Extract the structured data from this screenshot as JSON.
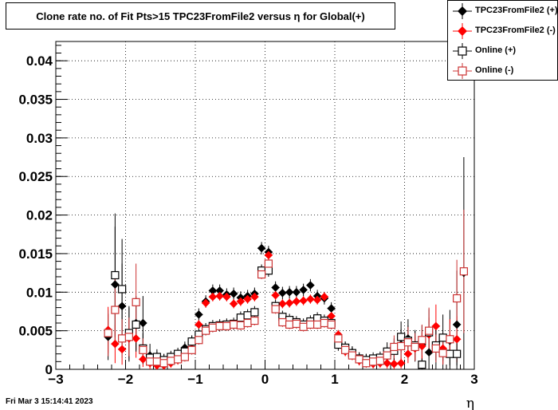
{
  "chart_data": {
    "type": "scatter",
    "title": "Clone rate no. of Fit Pts>15 TPC23FromFile2 versus η for Global(+)",
    "xlabel": "η",
    "ylabel": "",
    "xlim": [
      -3,
      3
    ],
    "ylim": [
      0,
      0.0425
    ],
    "xticks": [
      -3,
      -2,
      -1,
      0,
      1,
      2,
      3
    ],
    "xtick_labels": [
      "−3",
      "−2",
      "−1",
      "0",
      "1",
      "2",
      "3"
    ],
    "yticks": [
      0,
      0.005,
      0.01,
      0.015,
      0.02,
      0.025,
      0.03,
      0.035,
      0.04
    ],
    "ytick_labels": [
      "0",
      "0.005",
      "0.01",
      "0.015",
      "0.02",
      "0.025",
      "0.03",
      "0.035",
      "0.04"
    ],
    "grid": true,
    "legend_position": "top-right",
    "series": [
      {
        "name": "TPC23FromFile2 (+)",
        "color": "#000000",
        "marker": "diamond-filled",
        "x": [
          -2.25,
          -2.15,
          -2.05,
          -1.95,
          -1.85,
          -1.75,
          -1.65,
          -1.55,
          -1.45,
          -1.35,
          -1.25,
          -1.15,
          -1.05,
          -0.95,
          -0.85,
          -0.75,
          -0.65,
          -0.55,
          -0.45,
          -0.35,
          -0.25,
          -0.15,
          -0.05,
          0.05,
          0.15,
          0.25,
          0.35,
          0.45,
          0.55,
          0.65,
          0.75,
          0.85,
          0.95,
          1.05,
          1.15,
          1.25,
          1.35,
          1.45,
          1.55,
          1.65,
          1.75,
          1.85,
          1.95,
          2.05,
          2.15,
          2.25,
          2.35,
          2.45,
          2.55,
          2.65,
          2.75,
          2.85
        ],
        "y": [
          0.0042,
          0.011,
          0.0082,
          0.0045,
          0.006,
          0.006,
          0.0018,
          0.0013,
          0.0012,
          0.0014,
          0.0018,
          0.0028,
          0.0036,
          0.0071,
          0.0088,
          0.0102,
          0.0102,
          0.0097,
          0.0098,
          0.0093,
          0.0095,
          0.0098,
          0.0157,
          0.0152,
          0.0106,
          0.0099,
          0.01,
          0.01,
          0.0103,
          0.0109,
          0.0095,
          0.0092,
          0.0079,
          0.0042,
          0.0028,
          0.0022,
          0.0014,
          0.0012,
          0.0011,
          0.0012,
          0.0017,
          0.0025,
          0.0032,
          0.004,
          0.003,
          0.0032,
          0.0022,
          0.003,
          0.0021,
          0.0037,
          0.0058,
          0.0125
        ],
        "yerr": [
          0.003,
          0.0075,
          0.0055,
          0.0035,
          0.0035,
          0.0035,
          0.0015,
          0.001,
          0.0008,
          0.0008,
          0.0008,
          0.0008,
          0.0008,
          0.0008,
          0.0008,
          0.0008,
          0.0008,
          0.0008,
          0.0008,
          0.0008,
          0.0008,
          0.0008,
          0.0008,
          0.0008,
          0.0008,
          0.0008,
          0.0008,
          0.0008,
          0.0008,
          0.0008,
          0.0008,
          0.0008,
          0.0008,
          0.0008,
          0.0008,
          0.0008,
          0.0008,
          0.0008,
          0.0008,
          0.0008,
          0.0012,
          0.0015,
          0.002,
          0.0025,
          0.002,
          0.0025,
          0.0025,
          0.003,
          0.0025,
          0.004,
          0.007,
          0.015
        ]
      },
      {
        "name": "TPC23FromFile2 (-)",
        "color": "#ff0000",
        "marker": "diamond-filled",
        "x": [
          -2.25,
          -2.15,
          -2.05,
          -1.95,
          -1.85,
          -1.75,
          -1.65,
          -1.55,
          -1.45,
          -1.35,
          -1.25,
          -1.15,
          -1.05,
          -0.95,
          -0.85,
          -0.75,
          -0.65,
          -0.55,
          -0.45,
          -0.35,
          -0.25,
          -0.15,
          -0.05,
          0.05,
          0.15,
          0.25,
          0.35,
          0.45,
          0.55,
          0.65,
          0.75,
          0.85,
          0.95,
          1.05,
          1.15,
          1.25,
          1.35,
          1.45,
          1.55,
          1.65,
          1.75,
          1.85,
          1.95,
          2.05,
          2.15,
          2.25,
          2.35,
          2.45,
          2.55,
          2.65,
          2.75
        ],
        "y": [
          0.0051,
          0.0033,
          0.0026,
          0.004,
          0.004,
          0.0013,
          0.0008,
          0.0005,
          0.0005,
          0.0008,
          0.0012,
          0.0018,
          0.0034,
          0.0058,
          0.0086,
          0.0094,
          0.0095,
          0.0094,
          0.0085,
          0.0088,
          0.0091,
          0.0094,
          0.0128,
          0.0148,
          0.0096,
          0.0085,
          0.0086,
          0.0088,
          0.0089,
          0.0091,
          0.009,
          0.0094,
          0.0069,
          0.0045,
          0.0023,
          0.0018,
          0.0011,
          0.0008,
          0.0007,
          0.0008,
          0.0008,
          0.0007,
          0.0008,
          0.002,
          0.0027,
          0.003,
          0.0045,
          0.0056,
          0.0027,
          0.004,
          0.0039
        ],
        "yerr": [
          0.003,
          0.0025,
          0.002,
          0.0025,
          0.0025,
          0.001,
          0.0008,
          0.0006,
          0.0006,
          0.0006,
          0.0006,
          0.0006,
          0.0006,
          0.0006,
          0.0006,
          0.0006,
          0.0006,
          0.0006,
          0.0006,
          0.0006,
          0.0006,
          0.0006,
          0.0006,
          0.0006,
          0.0006,
          0.0006,
          0.0006,
          0.0006,
          0.0006,
          0.0006,
          0.0006,
          0.0006,
          0.0006,
          0.0006,
          0.0006,
          0.0006,
          0.0006,
          0.0006,
          0.0006,
          0.0006,
          0.0007,
          0.0007,
          0.0007,
          0.0012,
          0.0015,
          0.0018,
          0.0022,
          0.0028,
          0.002,
          0.0025,
          0.003
        ]
      },
      {
        "name": "Online (+)",
        "color": "#000000",
        "marker": "square-open",
        "x": [
          -2.15,
          -2.05,
          -1.95,
          -1.85,
          -1.75,
          -1.65,
          -1.55,
          -1.45,
          -1.35,
          -1.25,
          -1.15,
          -1.05,
          -0.95,
          -0.85,
          -0.75,
          -0.65,
          -0.55,
          -0.45,
          -0.35,
          -0.25,
          -0.15,
          -0.05,
          0.05,
          0.15,
          0.25,
          0.35,
          0.45,
          0.55,
          0.65,
          0.75,
          0.85,
          0.95,
          1.05,
          1.15,
          1.25,
          1.35,
          1.45,
          1.55,
          1.65,
          1.75,
          1.85,
          1.95,
          2.05,
          2.15,
          2.25,
          2.35,
          2.45,
          2.55,
          2.65,
          2.75
        ],
        "y": [
          0.0122,
          0.0104,
          0.0047,
          0.0058,
          0.0027,
          0.0015,
          0.0016,
          0.0012,
          0.0016,
          0.002,
          0.0023,
          0.0036,
          0.0045,
          0.0052,
          0.0056,
          0.0057,
          0.0058,
          0.0059,
          0.0067,
          0.007,
          0.0074,
          0.0128,
          0.0128,
          0.0082,
          0.0068,
          0.0064,
          0.0061,
          0.0058,
          0.0062,
          0.0066,
          0.0063,
          0.006,
          0.0032,
          0.0028,
          0.0021,
          0.0014,
          0.0012,
          0.0014,
          0.0015,
          0.0023,
          0.0024,
          0.0042,
          0.0037,
          0.0031,
          0.0006,
          0.0048,
          0.0031,
          0.0041,
          0.002,
          0.002
        ],
        "yerr": [
          0.008,
          0.0065,
          0.0035,
          0.0035,
          0.002,
          0.001,
          0.001,
          0.0008,
          0.0008,
          0.0008,
          0.0008,
          0.0008,
          0.0008,
          0.0008,
          0.0008,
          0.0008,
          0.0008,
          0.0008,
          0.0008,
          0.0008,
          0.0008,
          0.0008,
          0.0008,
          0.0008,
          0.0008,
          0.0008,
          0.0008,
          0.0008,
          0.0008,
          0.0008,
          0.0008,
          0.0008,
          0.0008,
          0.0008,
          0.0008,
          0.0008,
          0.0008,
          0.0008,
          0.0008,
          0.0012,
          0.0012,
          0.002,
          0.002,
          0.002,
          0.0008,
          0.003,
          0.002,
          0.003,
          0.0015,
          0.0015
        ]
      },
      {
        "name": "Online (-)",
        "color": "#cc3333",
        "marker": "square-open",
        "x": [
          -2.25,
          -2.15,
          -2.05,
          -1.95,
          -1.85,
          -1.75,
          -1.65,
          -1.55,
          -1.45,
          -1.35,
          -1.25,
          -1.15,
          -1.05,
          -0.95,
          -0.85,
          -0.75,
          -0.65,
          -0.55,
          -0.45,
          -0.35,
          -0.25,
          -0.15,
          -0.05,
          0.05,
          0.15,
          0.25,
          0.35,
          0.45,
          0.55,
          0.65,
          0.75,
          0.85,
          0.95,
          1.05,
          1.15,
          1.25,
          1.35,
          1.45,
          1.55,
          1.65,
          1.75,
          1.85,
          1.95,
          2.05,
          2.15,
          2.25,
          2.35,
          2.45,
          2.55,
          2.65,
          2.75,
          2.85
        ],
        "y": [
          0.0047,
          0.0077,
          0.004,
          0.0042,
          0.0087,
          0.0025,
          0.001,
          0.001,
          0.0008,
          0.0011,
          0.0013,
          0.0016,
          0.0025,
          0.0038,
          0.005,
          0.0054,
          0.0056,
          0.0056,
          0.0058,
          0.0057,
          0.006,
          0.0063,
          0.0123,
          0.0137,
          0.0078,
          0.0061,
          0.0058,
          0.0059,
          0.0055,
          0.0058,
          0.0058,
          0.006,
          0.0058,
          0.004,
          0.0025,
          0.0018,
          0.0013,
          0.0008,
          0.001,
          0.0011,
          0.0018,
          0.0029,
          0.003,
          0.0035,
          0.0029,
          0.0038,
          0.005,
          0.0027,
          0.0021,
          0.0039,
          0.0092,
          0.0127
        ],
        "yerr": [
          0.003,
          0.005,
          0.0025,
          0.0025,
          0.005,
          0.0015,
          0.0008,
          0.0008,
          0.0006,
          0.0006,
          0.0006,
          0.0006,
          0.0006,
          0.0006,
          0.0006,
          0.0006,
          0.0006,
          0.0006,
          0.0006,
          0.0006,
          0.0006,
          0.0006,
          0.0006,
          0.0006,
          0.0006,
          0.0006,
          0.0006,
          0.0006,
          0.0006,
          0.0006,
          0.0006,
          0.0006,
          0.0006,
          0.0006,
          0.0006,
          0.0006,
          0.0006,
          0.0006,
          0.0006,
          0.0006,
          0.0008,
          0.0015,
          0.0015,
          0.002,
          0.0018,
          0.002,
          0.003,
          0.0018,
          0.0015,
          0.002,
          0.005,
          0.008
        ]
      }
    ]
  },
  "footer": {
    "datestamp": "Fri Mar  3 15:14:41 2023"
  }
}
